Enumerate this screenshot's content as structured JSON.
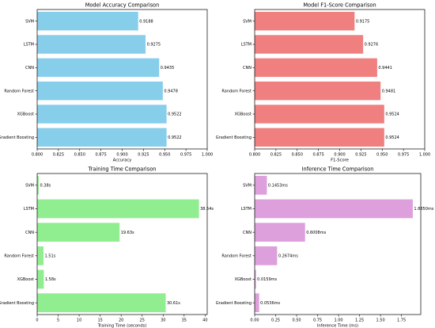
{
  "chart_data": [
    {
      "type": "bar",
      "orientation": "horizontal",
      "title": "Model Accuracy Comparison",
      "xlabel": "Accuracy",
      "ylabel": "",
      "categories": [
        "SVM",
        "LSTM",
        "CNN",
        "Random Forest",
        "XGBoost",
        "Gradient Boosting"
      ],
      "values": [
        0.9188,
        0.9275,
        0.9435,
        0.9478,
        0.9522,
        0.9522
      ],
      "data_labels": [
        "0.9188",
        "0.9275",
        "0.9435",
        "0.9478",
        "0.9522",
        "0.9522"
      ],
      "xlim": [
        0.8,
        1.0
      ],
      "xticks": [
        "0.800",
        "0.825",
        "0.850",
        "0.875",
        "0.900",
        "0.925",
        "0.950",
        "0.975",
        "1.000"
      ],
      "xtick_values": [
        0.8,
        0.825,
        0.85,
        0.875,
        0.9,
        0.925,
        0.95,
        0.975,
        1.0
      ],
      "color": "#87ceeb",
      "grid": false
    },
    {
      "type": "bar",
      "orientation": "horizontal",
      "title": "Model F1-Score Comparison",
      "xlabel": "F1-Score",
      "ylabel": "",
      "categories": [
        "SVM",
        "LSTM",
        "CNN",
        "Random Forest",
        "XGBoost",
        "Gradient Boosting"
      ],
      "values": [
        0.9175,
        0.9276,
        0.9441,
        0.9481,
        0.9524,
        0.9524
      ],
      "data_labels": [
        "0.9175",
        "0.9276",
        "0.9441",
        "0.9481",
        "0.9524",
        "0.9524"
      ],
      "xlim": [
        0.8,
        1.0
      ],
      "xticks": [
        "0.800",
        "0.825",
        "0.850",
        "0.875",
        "0.900",
        "0.925",
        "0.950",
        "0.975",
        "1.000"
      ],
      "xtick_values": [
        0.8,
        0.825,
        0.85,
        0.875,
        0.9,
        0.925,
        0.95,
        0.975,
        1.0
      ],
      "color": "#f08080",
      "grid": false
    },
    {
      "type": "bar",
      "orientation": "horizontal",
      "title": "Training Time Comparison",
      "xlabel": "Training Time (seconds)",
      "ylabel": "",
      "categories": [
        "SVM",
        "LSTM",
        "CNN",
        "Random Forest",
        "XGBoost",
        "Gradient Boosting"
      ],
      "values": [
        0.38,
        38.54,
        19.63,
        1.51,
        1.58,
        30.61
      ],
      "data_labels": [
        "0.38s",
        "38.54s",
        "19.63s",
        "1.51s",
        "1.58s",
        "30.61s"
      ],
      "xlim": [
        0,
        40.5
      ],
      "xticks": [
        "0",
        "5",
        "10",
        "15",
        "20",
        "25",
        "30",
        "35",
        "40"
      ],
      "xtick_values": [
        0,
        5,
        10,
        15,
        20,
        25,
        30,
        35,
        40
      ],
      "color": "#90ee90",
      "grid": false
    },
    {
      "type": "bar",
      "orientation": "horizontal",
      "title": "Inference Time Comparison",
      "xlabel": "Inference Time (ms)",
      "ylabel": "",
      "categories": [
        "SVM",
        "LSTM",
        "CNN",
        "Random Forest",
        "XGBoost",
        "Gradient Boosting"
      ],
      "values": [
        0.1453,
        1.885,
        0.6008,
        0.2674,
        0.0159,
        0.0536
      ],
      "data_labels": [
        "0.1453ms",
        "1.8850ms",
        "0.6008ms",
        "0.2674ms",
        "0.0159ms",
        "0.0536ms"
      ],
      "xlim": [
        0,
        1.98
      ],
      "xticks": [
        "0.00",
        "0.25",
        "0.50",
        "0.75",
        "1.00",
        "1.25",
        "1.50",
        "1.75"
      ],
      "xtick_values": [
        0,
        0.25,
        0.5,
        0.75,
        1.0,
        1.25,
        1.5,
        1.75
      ],
      "color": "#dda0dd",
      "grid": false
    }
  ]
}
